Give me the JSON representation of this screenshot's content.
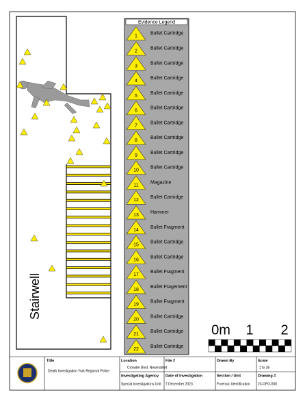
{
  "legend": {
    "title": "Evidence Legend",
    "items": [
      {
        "number": 1,
        "label": "Bullet Cartridge"
      },
      {
        "number": 2,
        "label": "Bullet Cartridge"
      },
      {
        "number": 3,
        "label": "Bullet Cartridge"
      },
      {
        "number": 4,
        "label": "Bullet Cartridge"
      },
      {
        "number": 5,
        "label": "Bullet Cartridge"
      },
      {
        "number": 6,
        "label": "Bullet Cartridge"
      },
      {
        "number": 7,
        "label": "Bullet Cartridge"
      },
      {
        "number": 8,
        "label": "Bullet Cartridge"
      },
      {
        "number": 9,
        "label": "Bullet Cartridge"
      },
      {
        "number": 10,
        "label": "Bullet Cartridge"
      },
      {
        "number": 11,
        "label": "Magazine"
      },
      {
        "number": 12,
        "label": "Bullet Cartridge"
      },
      {
        "number": 13,
        "label": "Hammer"
      },
      {
        "number": 14,
        "label": "Bullet Fragment"
      },
      {
        "number": 15,
        "label": "Bullet Cartridge"
      },
      {
        "number": 16,
        "label": "Bullet Cartridge"
      },
      {
        "number": 17,
        "label": "Bullet Fragment"
      },
      {
        "number": 18,
        "label": "Bullet Fragement"
      },
      {
        "number": 19,
        "label": "Bullet Fragment"
      },
      {
        "number": 20,
        "label": "Bullet Cartridge"
      },
      {
        "number": 21,
        "label": "Bullet Cartridge"
      },
      {
        "number": 22,
        "label": "Bullet Cartridge"
      }
    ]
  },
  "room_label": "Stairwell",
  "scale_bar": {
    "labels": [
      "0m",
      "1",
      "2"
    ]
  },
  "title_block": {
    "title": {
      "heading": "Title",
      "value": "Death Investigation York Regional Police"
    },
    "location": {
      "heading": "Location",
      "value": "Crowder Blvd. Newmarket"
    },
    "file": {
      "heading": "File #"
    },
    "drawn_by": {
      "heading": "Drawn By"
    },
    "scale": {
      "heading": "Scale",
      "value": "1 to 36"
    },
    "agency": {
      "heading": "Investigating Agency",
      "value": "Special Investigations Unit"
    },
    "date": {
      "heading": "Date of Investigation",
      "value": "7 December 2023"
    },
    "section": {
      "heading": "Section / Unit",
      "value": "Forensic Identification"
    },
    "drawing": {
      "heading": "Drawing #",
      "value": "23-OFO-500"
    }
  }
}
